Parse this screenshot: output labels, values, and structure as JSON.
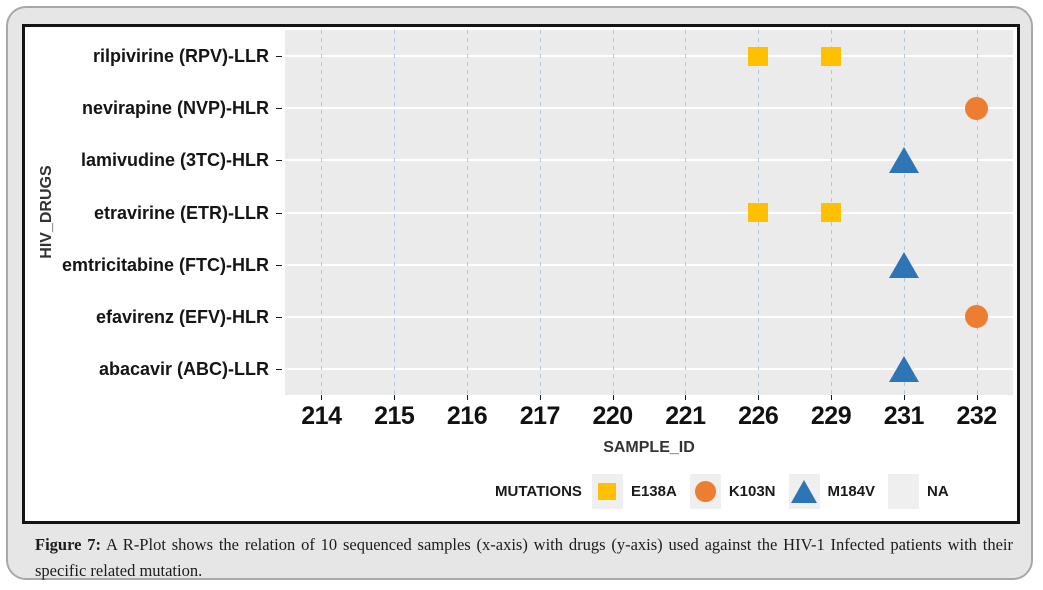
{
  "chart_data": {
    "type": "scatter",
    "title": "",
    "xlabel": "SAMPLE_ID",
    "ylabel": "HIV_DRUGS",
    "x_categories": [
      "214",
      "215",
      "216",
      "217",
      "220",
      "221",
      "226",
      "229",
      "231",
      "232"
    ],
    "y_categories": [
      "rilpivirine (RPV)-LLR",
      "nevirapine (NVP)-HLR",
      "lamivudine (3TC)-HLR",
      "etravirine (ETR)-LLR",
      "emtricitabine (FTC)-HLR",
      "efavirenz (EFV)-HLR",
      "abacavir (ABC)-LLR"
    ],
    "legend_title": "MUTATIONS",
    "legend_position": "bottom-right",
    "legend": [
      {
        "label": "E138A",
        "marker": "square",
        "color": "#FFC000"
      },
      {
        "label": "K103N",
        "marker": "circle",
        "color": "#ED7D31"
      },
      {
        "label": "M184V",
        "marker": "triangle",
        "color": "#2E75B6"
      },
      {
        "label": "NA",
        "marker": "none",
        "color": null
      }
    ],
    "points": [
      {
        "x": "226",
        "y": "rilpivirine (RPV)-LLR",
        "mutation": "E138A"
      },
      {
        "x": "229",
        "y": "rilpivirine (RPV)-LLR",
        "mutation": "E138A"
      },
      {
        "x": "232",
        "y": "nevirapine (NVP)-HLR",
        "mutation": "K103N"
      },
      {
        "x": "231",
        "y": "lamivudine (3TC)-HLR",
        "mutation": "M184V"
      },
      {
        "x": "226",
        "y": "etravirine (ETR)-LLR",
        "mutation": "E138A"
      },
      {
        "x": "229",
        "y": "etravirine (ETR)-LLR",
        "mutation": "E138A"
      },
      {
        "x": "231",
        "y": "emtricitabine (FTC)-HLR",
        "mutation": "M184V"
      },
      {
        "x": "232",
        "y": "efavirenz (EFV)-HLR",
        "mutation": "K103N"
      },
      {
        "x": "231",
        "y": "abacavir (ABC)-LLR",
        "mutation": "M184V"
      }
    ],
    "grid": {
      "vertical": true,
      "horizontal": true
    },
    "style": {
      "panel_bg": "#EBEBEB",
      "h_grid_color": "#FFFFFF",
      "v_grid_color": "#AEC7E8",
      "v_grid_style": "dashed",
      "legend_key_bg": "#EFEFEF"
    }
  },
  "caption": {
    "label": "Figure 7:",
    "text": "A R-Plot shows the relation of 10 sequenced samples (x-axis) with drugs (y-axis) used against the HIV-1 Infected patients with their specific related mutation."
  }
}
